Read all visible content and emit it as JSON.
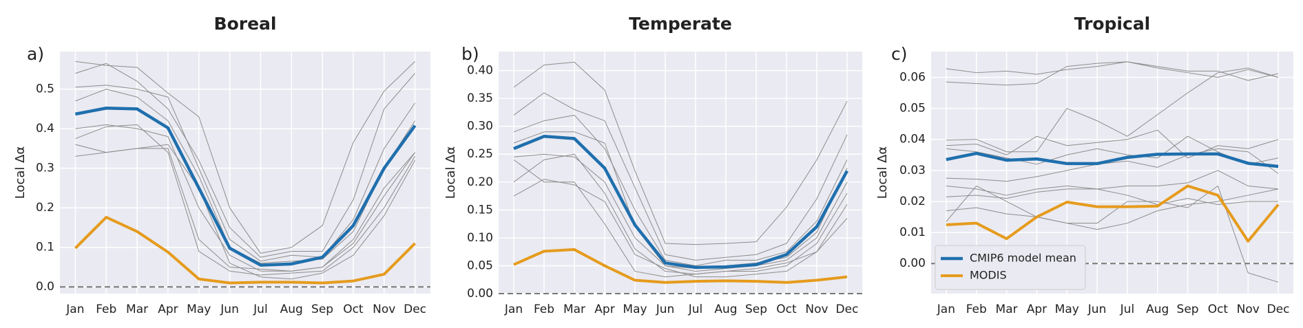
{
  "chart_data": [
    {
      "type": "line",
      "title": "Boreal",
      "label": "a)",
      "ylabel": "Local Δα",
      "categories": [
        "Jan",
        "Feb",
        "Mar",
        "Apr",
        "May",
        "Jun",
        "Jul",
        "Aug",
        "Sep",
        "Oct",
        "Nov",
        "Dec"
      ],
      "ylim": [
        -0.017,
        0.595
      ],
      "yticks": [
        {
          "value": 0,
          "label": "0.0"
        },
        {
          "value": 0.1,
          "label": "0.1"
        },
        {
          "value": 0.2,
          "label": "0.2"
        },
        {
          "value": 0.3,
          "label": "0.3"
        },
        {
          "value": 0.4,
          "label": "0.4"
        },
        {
          "value": 0.5,
          "label": "0.5"
        }
      ],
      "grid": true,
      "hlines": [
        0
      ],
      "series": [
        {
          "color": "#8c8c8c",
          "linewidth": 1,
          "values": [
            0.57,
            0.56,
            0.555,
            0.49,
            0.43,
            0.2,
            0.085,
            0.1,
            0.155,
            0.365,
            0.495,
            0.57
          ]
        },
        {
          "color": "#8c8c8c",
          "linewidth": 1,
          "values": [
            0.54,
            0.565,
            0.52,
            0.45,
            0.32,
            0.15,
            0.075,
            0.09,
            0.09,
            0.22,
            0.45,
            0.54
          ]
        },
        {
          "color": "#8c8c8c",
          "linewidth": 1,
          "values": [
            0.505,
            0.51,
            0.5,
            0.48,
            0.3,
            0.12,
            0.065,
            0.08,
            0.075,
            0.17,
            0.35,
            0.465
          ]
        },
        {
          "color": "#8c8c8c",
          "linewidth": 1,
          "values": [
            0.47,
            0.5,
            0.48,
            0.42,
            0.28,
            0.1,
            0.06,
            0.065,
            0.07,
            0.14,
            0.3,
            0.42
          ]
        },
        {
          "color": "#8c8c8c",
          "linewidth": 1,
          "values": [
            0.4,
            0.41,
            0.4,
            0.38,
            0.2,
            0.08,
            0.04,
            0.04,
            0.05,
            0.12,
            0.25,
            0.34
          ]
        },
        {
          "color": "#8c8c8c",
          "linewidth": 1,
          "values": [
            0.375,
            0.405,
            0.41,
            0.34,
            0.09,
            0.04,
            0.03,
            0.035,
            0.04,
            0.1,
            0.2,
            0.33
          ]
        },
        {
          "color": "#8c8c8c",
          "linewidth": 1,
          "values": [
            0.36,
            0.34,
            0.35,
            0.36,
            0.25,
            0.06,
            0.025,
            0.02,
            0.035,
            0.08,
            0.18,
            0.32
          ]
        },
        {
          "color": "#8c8c8c",
          "linewidth": 1,
          "values": [
            0.33,
            0.34,
            0.35,
            0.35,
            0.12,
            0.05,
            0.045,
            0.04,
            0.05,
            0.11,
            0.23,
            0.34
          ]
        },
        {
          "color": "#1f6fad",
          "linewidth": 4.5,
          "values": [
            0.437,
            0.452,
            0.45,
            0.402,
            0.25,
            0.098,
            0.055,
            0.058,
            0.075,
            0.155,
            0.3,
            0.408
          ]
        },
        {
          "color": "#e59b1c",
          "linewidth": 4,
          "values": [
            0.098,
            0.176,
            0.14,
            0.088,
            0.02,
            0.01,
            0.012,
            0.012,
            0.01,
            0.015,
            0.032,
            0.11
          ]
        }
      ]
    },
    {
      "type": "line",
      "title": "Temperate",
      "label": "b)",
      "ylabel": "Local Δα",
      "categories": [
        "Jan",
        "Feb",
        "Mar",
        "Apr",
        "May",
        "Jun",
        "Jul",
        "Aug",
        "Sep",
        "Oct",
        "Nov",
        "Dec"
      ],
      "ylim": [
        0,
        0.434
      ],
      "yticks": [
        {
          "value": 0,
          "label": "0.00"
        },
        {
          "value": 0.05,
          "label": "0.05"
        },
        {
          "value": 0.1,
          "label": "0.10"
        },
        {
          "value": 0.15,
          "label": "0.15"
        },
        {
          "value": 0.2,
          "label": "0.20"
        },
        {
          "value": 0.25,
          "label": "0.25"
        },
        {
          "value": 0.3,
          "label": "0.30"
        },
        {
          "value": 0.35,
          "label": "0.35"
        },
        {
          "value": 0.4,
          "label": "0.40"
        }
      ],
      "grid": true,
      "hlines": [
        0
      ],
      "series": [
        {
          "color": "#8c8c8c",
          "linewidth": 1,
          "values": [
            0.37,
            0.41,
            0.415,
            0.365,
            0.22,
            0.09,
            0.088,
            0.09,
            0.093,
            0.155,
            0.24,
            0.345
          ]
        },
        {
          "color": "#8c8c8c",
          "linewidth": 1,
          "values": [
            0.32,
            0.36,
            0.33,
            0.31,
            0.19,
            0.07,
            0.06,
            0.065,
            0.07,
            0.09,
            0.17,
            0.285
          ]
        },
        {
          "color": "#8c8c8c",
          "linewidth": 1,
          "values": [
            0.29,
            0.31,
            0.32,
            0.26,
            0.15,
            0.06,
            0.05,
            0.06,
            0.06,
            0.075,
            0.13,
            0.24
          ]
        },
        {
          "color": "#8c8c8c",
          "linewidth": 1,
          "values": [
            0.27,
            0.29,
            0.29,
            0.27,
            0.12,
            0.05,
            0.045,
            0.05,
            0.055,
            0.065,
            0.11,
            0.225
          ]
        },
        {
          "color": "#8c8c8c",
          "linewidth": 1,
          "values": [
            0.245,
            0.25,
            0.245,
            0.2,
            0.1,
            0.05,
            0.04,
            0.045,
            0.05,
            0.06,
            0.1,
            0.2
          ]
        },
        {
          "color": "#8c8c8c",
          "linewidth": 1,
          "values": [
            0.2,
            0.24,
            0.25,
            0.18,
            0.08,
            0.04,
            0.035,
            0.04,
            0.045,
            0.055,
            0.075,
            0.16
          ]
        },
        {
          "color": "#8c8c8c",
          "linewidth": 1,
          "values": [
            0.175,
            0.205,
            0.195,
            0.165,
            0.07,
            0.045,
            0.03,
            0.03,
            0.035,
            0.04,
            0.075,
            0.135
          ]
        },
        {
          "color": "#8c8c8c",
          "linewidth": 1,
          "values": [
            0.24,
            0.2,
            0.2,
            0.125,
            0.04,
            0.03,
            0.035,
            0.04,
            0.04,
            0.05,
            0.09,
            0.18
          ]
        },
        {
          "color": "#1f6fad",
          "linewidth": 4.5,
          "values": [
            0.26,
            0.282,
            0.278,
            0.225,
            0.123,
            0.055,
            0.047,
            0.048,
            0.052,
            0.07,
            0.12,
            0.22
          ]
        },
        {
          "color": "#e59b1c",
          "linewidth": 4,
          "values": [
            0.052,
            0.076,
            0.079,
            0.05,
            0.024,
            0.02,
            0.022,
            0.023,
            0.022,
            0.02,
            0.024,
            0.03
          ]
        }
      ]
    },
    {
      "type": "line",
      "title": "Tropical",
      "label": "c)",
      "ylabel": "Local Δα",
      "categories": [
        "Jan",
        "Feb",
        "Mar",
        "Apr",
        "May",
        "Jun",
        "Jul",
        "Aug",
        "Sep",
        "Oct",
        "Nov",
        "Dec"
      ],
      "ylim": [
        -0.0097,
        0.0683
      ],
      "yticks": [
        {
          "value": 0,
          "label": "0.00"
        },
        {
          "value": 0.01,
          "label": "0.01"
        },
        {
          "value": 0.02,
          "label": "0.02"
        },
        {
          "value": 0.03,
          "label": "0.03"
        },
        {
          "value": 0.04,
          "label": "0.04"
        },
        {
          "value": 0.05,
          "label": "0.05"
        },
        {
          "value": 0.06,
          "label": "0.06"
        }
      ],
      "grid": true,
      "hlines": [
        0
      ],
      "legend": "lower left",
      "series": [
        {
          "color": "#8c8c8c",
          "linewidth": 1,
          "values": [
            0.0628,
            0.0615,
            0.062,
            0.061,
            0.0625,
            0.0635,
            0.065,
            0.063,
            0.0615,
            0.06,
            0.0625,
            0.06
          ]
        },
        {
          "color": "#8c8c8c",
          "linewidth": 1,
          "values": [
            0.0585,
            0.058,
            0.0575,
            0.058,
            0.0635,
            0.0645,
            0.065,
            0.0635,
            0.062,
            0.062,
            0.059,
            0.0612
          ]
        },
        {
          "color": "#8c8c8c",
          "linewidth": 1,
          "values": [
            0.0398,
            0.04,
            0.036,
            0.036,
            0.05,
            0.046,
            0.041,
            0.048,
            0.055,
            0.0615,
            0.063,
            0.06
          ]
        },
        {
          "color": "#8c8c8c",
          "linewidth": 1,
          "values": [
            0.038,
            0.0385,
            0.035,
            0.041,
            0.038,
            0.039,
            0.04,
            0.043,
            0.034,
            0.038,
            0.037,
            0.04
          ]
        },
        {
          "color": "#8c8c8c",
          "linewidth": 1,
          "values": [
            0.037,
            0.036,
            0.034,
            0.032,
            0.035,
            0.037,
            0.035,
            0.034,
            0.041,
            0.036,
            0.032,
            0.034
          ]
        },
        {
          "color": "#8c8c8c",
          "linewidth": 1,
          "values": [
            0.0275,
            0.0272,
            0.0265,
            0.028,
            0.03,
            0.032,
            0.033,
            0.031,
            0.035,
            0.037,
            0.036,
            0.029
          ]
        },
        {
          "color": "#8c8c8c",
          "linewidth": 1,
          "values": [
            0.025,
            0.024,
            0.022,
            0.024,
            0.025,
            0.024,
            0.025,
            0.025,
            0.026,
            0.03,
            0.025,
            0.024
          ]
        },
        {
          "color": "#8c8c8c",
          "linewidth": 1,
          "values": [
            0.0215,
            0.022,
            0.021,
            0.023,
            0.024,
            0.024,
            0.022,
            0.019,
            0.021,
            0.019,
            0.02,
            0.02
          ]
        },
        {
          "color": "#8c8c8c",
          "linewidth": 1,
          "values": [
            0.017,
            0.018,
            0.016,
            0.015,
            0.013,
            0.011,
            0.013,
            0.017,
            0.019,
            0.02,
            0.022,
            0.024
          ]
        },
        {
          "color": "#8c8c8c",
          "linewidth": 1,
          "values": [
            0.0135,
            0.025,
            0.02,
            0.015,
            0.013,
            0.013,
            0.02,
            0.02,
            0.018,
            0.025,
            -0.003,
            -0.006
          ]
        },
        {
          "name": "CMIP6 model mean",
          "color": "#1f6fad",
          "linewidth": 4.5,
          "values": [
            0.0335,
            0.0355,
            0.0333,
            0.0337,
            0.0322,
            0.0322,
            0.0342,
            0.0352,
            0.0353,
            0.0353,
            0.0323,
            0.0313
          ]
        },
        {
          "name": "MODIS",
          "color": "#e59b1c",
          "linewidth": 4,
          "values": [
            0.0125,
            0.013,
            0.008,
            0.015,
            0.0198,
            0.0183,
            0.0183,
            0.0185,
            0.025,
            0.022,
            0.0072,
            0.019
          ]
        }
      ]
    }
  ]
}
